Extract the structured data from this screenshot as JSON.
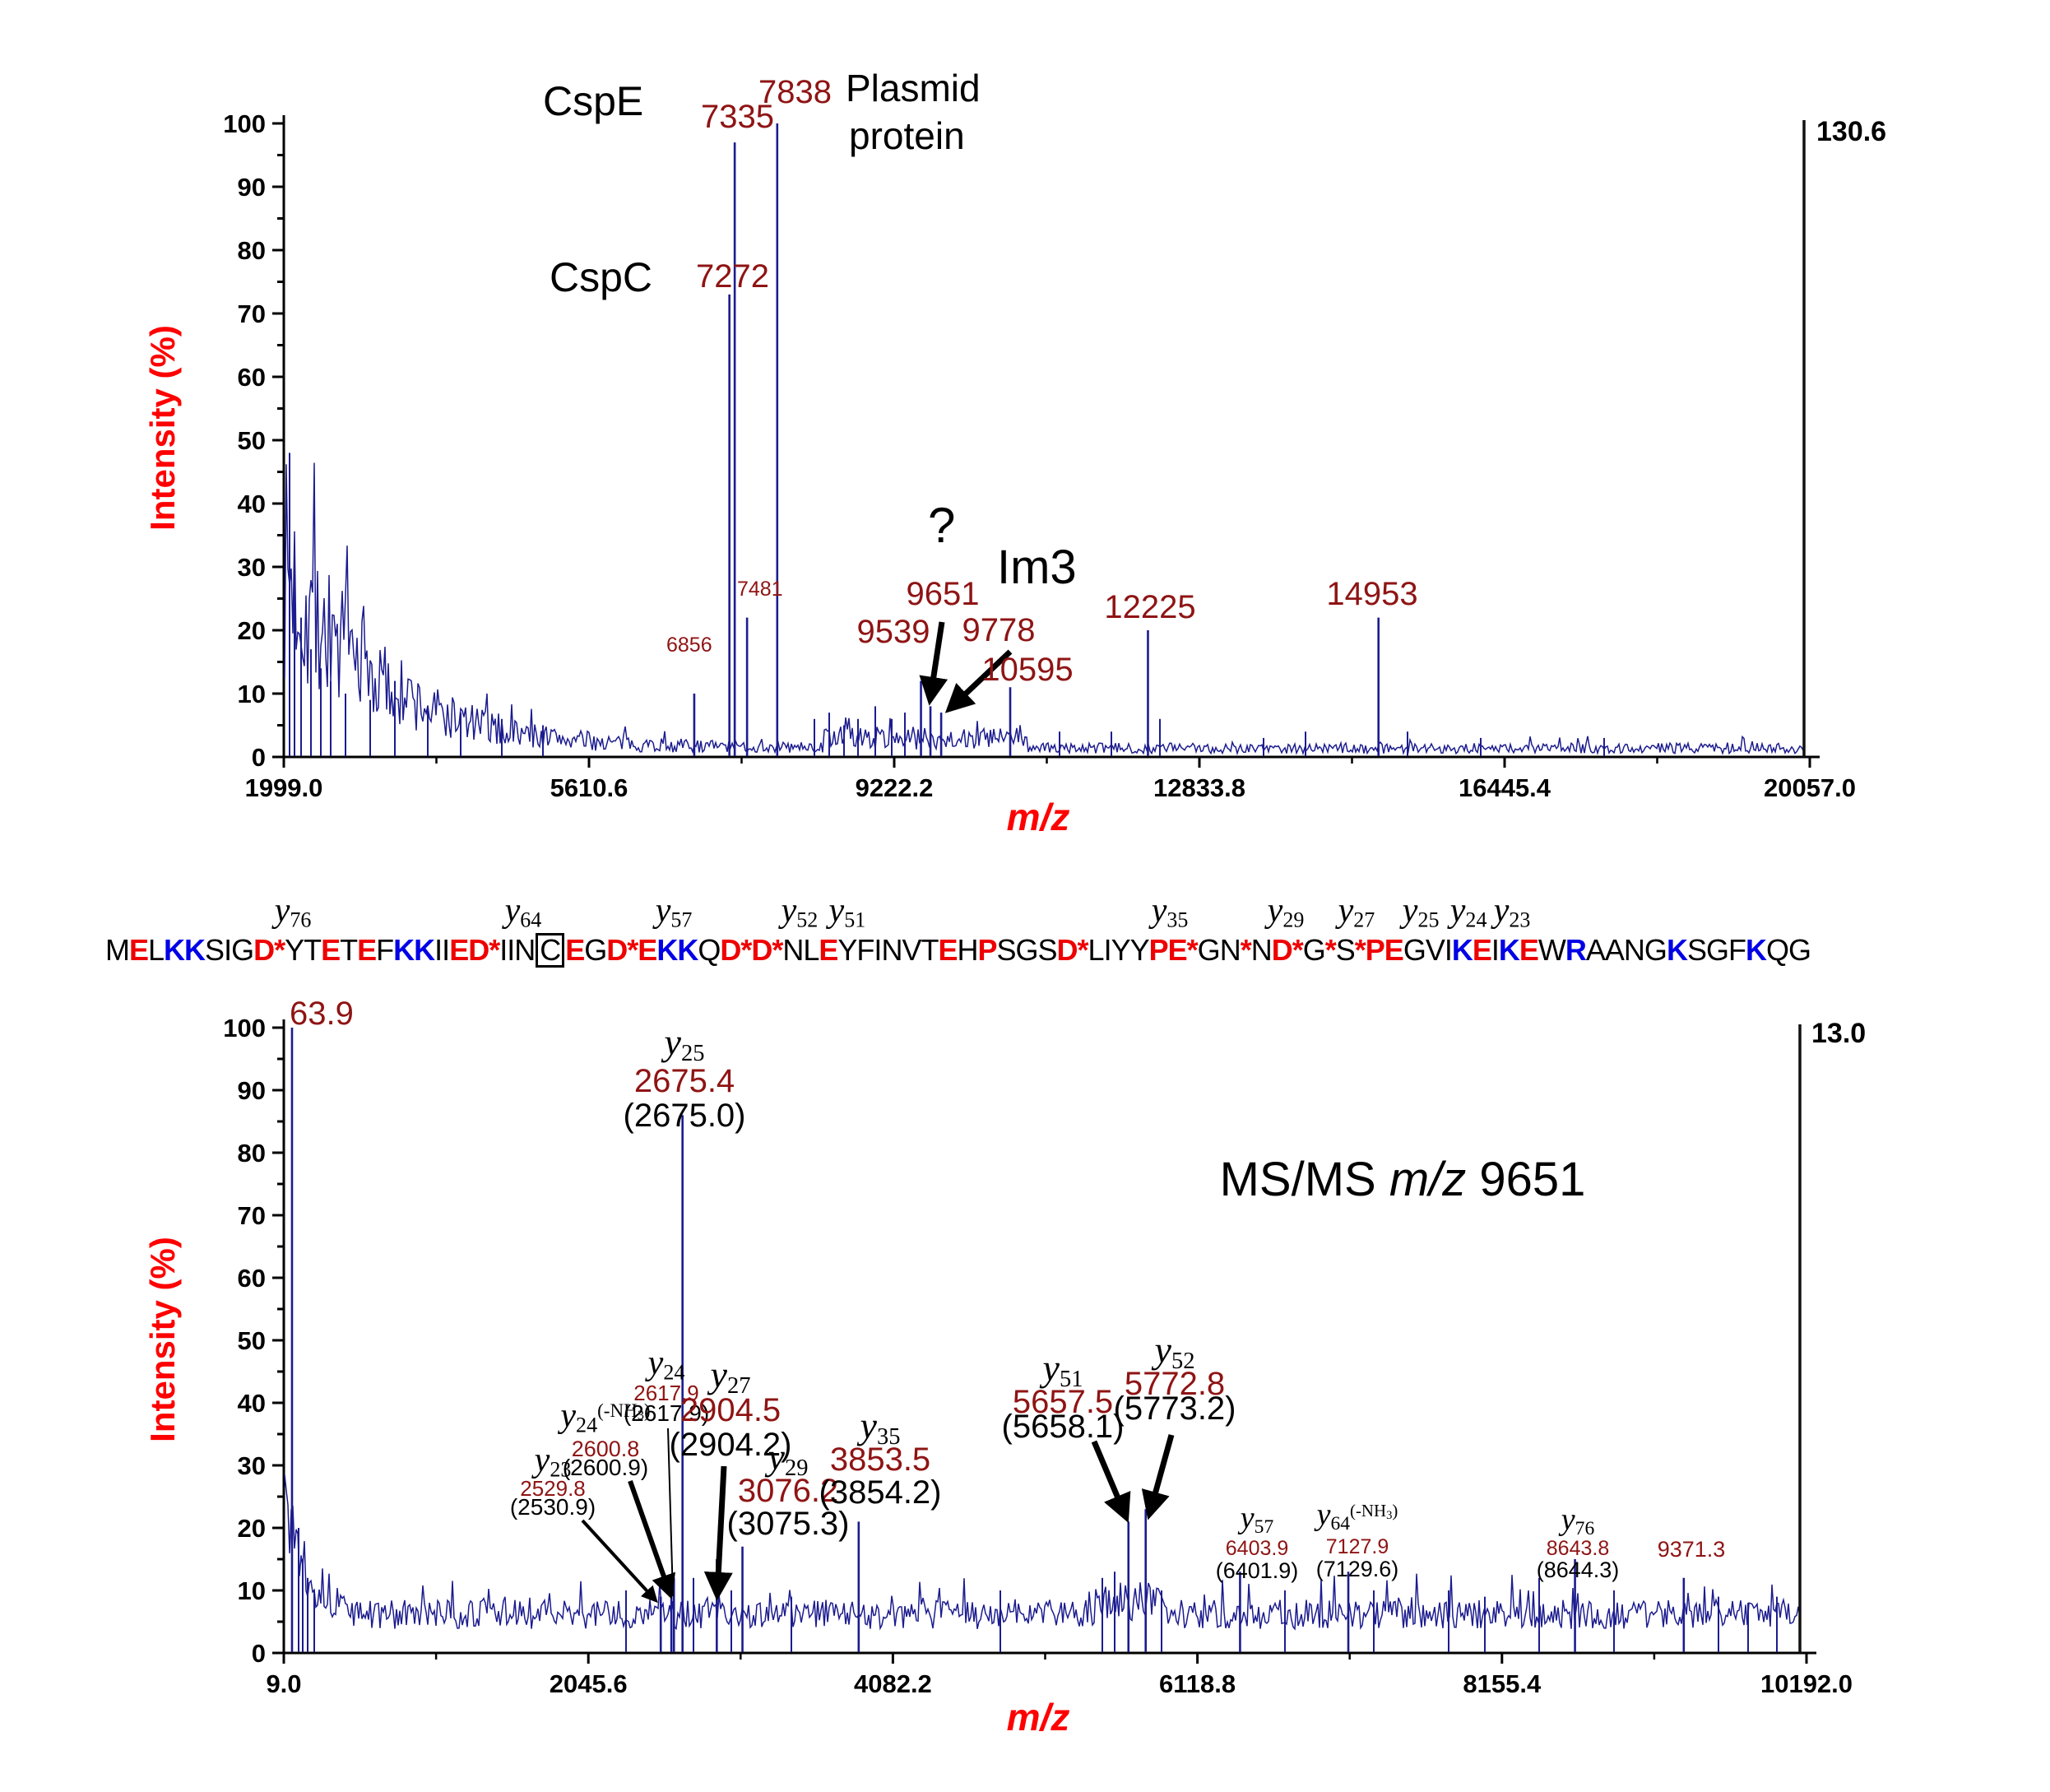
{
  "chart_data": [
    {
      "type": "line",
      "title": "",
      "xlabel": "m/z",
      "ylabel": "Intensity (%)",
      "xlim": [
        1999.0,
        20057.0
      ],
      "ylim": [
        0,
        100
      ],
      "x_tick_labels": [
        "1999.0",
        "5610.6",
        "9222.2",
        "12833.8",
        "16445.4",
        "20057.0"
      ],
      "y_tick_labels": [
        "0",
        "10",
        "20",
        "30",
        "40",
        "50",
        "60",
        "70",
        "80",
        "90",
        "100"
      ],
      "full_scale": "130.6",
      "grid": false,
      "peaks": [
        {
          "mz": 6856,
          "intensity": 10,
          "label": "6856"
        },
        {
          "mz": 7272,
          "intensity": 73,
          "label": "7272",
          "protein": "CspC"
        },
        {
          "mz": 7335,
          "intensity": 97,
          "label": "7335",
          "protein": "CspE"
        },
        {
          "mz": 7481,
          "intensity": 22,
          "label": "7481"
        },
        {
          "mz": 7838,
          "intensity": 100,
          "label": "7838",
          "protein": "Plasmid protein"
        },
        {
          "mz": 9539,
          "intensity": 12,
          "label": "9539"
        },
        {
          "mz": 9651,
          "intensity": 8,
          "label": "9651",
          "annotation": "?"
        },
        {
          "mz": 9778,
          "intensity": 7,
          "label": "9778",
          "annotation": "Im3"
        },
        {
          "mz": 10595,
          "intensity": 11,
          "label": "10595"
        },
        {
          "mz": 12225,
          "intensity": 20,
          "label": "12225"
        },
        {
          "mz": 14953,
          "intensity": 22,
          "label": "14953"
        }
      ]
    },
    {
      "type": "line",
      "title": "MS/MS m/z 9651",
      "xlabel": "m/z",
      "ylabel": "Intensity (%)",
      "xlim": [
        9.0,
        10192.0
      ],
      "ylim": [
        0,
        100
      ],
      "x_tick_labels": [
        "9.0",
        "2045.6",
        "4082.2",
        "6118.8",
        "8155.4",
        "10192.0"
      ],
      "y_tick_labels": [
        "0",
        "10",
        "20",
        "30",
        "40",
        "50",
        "60",
        "70",
        "80",
        "90",
        "100"
      ],
      "full_scale": "13.0",
      "grid": false,
      "peaks": [
        {
          "mz": 63.9,
          "intensity": 100,
          "label": "63.9"
        },
        {
          "mz": 2529.8,
          "intensity": 9,
          "ion": "y23",
          "observed": "2529.8",
          "calculated": "(2530.9)"
        },
        {
          "mz": 2600.8,
          "intensity": 10,
          "ion": "y24(-NH3)",
          "observed": "2600.8",
          "calculated": "(2600.9)"
        },
        {
          "mz": 2617.9,
          "intensity": 12,
          "ion": "y24",
          "observed": "2617.9",
          "calculated": "(2617.9)"
        },
        {
          "mz": 2675.4,
          "intensity": 86,
          "ion": "y25",
          "observed": "2675.4",
          "calculated": "(2675.0)"
        },
        {
          "mz": 2904.5,
          "intensity": 15,
          "ion": "y27",
          "observed": "2904.5",
          "calculated": "(2904.2)"
        },
        {
          "mz": 3076.2,
          "intensity": 17,
          "ion": "y29",
          "observed": "3076.2",
          "calculated": "(3075.3)"
        },
        {
          "mz": 3853.5,
          "intensity": 21,
          "ion": "y35",
          "observed": "3853.5",
          "calculated": "(3854.2)"
        },
        {
          "mz": 5657.5,
          "intensity": 21,
          "ion": "y51",
          "observed": "5657.5",
          "calculated": "(5658.1)"
        },
        {
          "mz": 5772.8,
          "intensity": 23,
          "ion": "y52",
          "observed": "5772.8",
          "calculated": "(5773.2)"
        },
        {
          "mz": 6403.9,
          "intensity": 13,
          "ion": "y57",
          "observed": "6403.9",
          "calculated": "(6401.9)"
        },
        {
          "mz": 7127.9,
          "intensity": 13,
          "ion": "y64(-NH3)",
          "observed": "7127.9",
          "calculated": "(7129.6)"
        },
        {
          "mz": 8643.8,
          "intensity": 15,
          "ion": "y76",
          "observed": "8643.8",
          "calculated": "(8644.3)"
        },
        {
          "mz": 9371.3,
          "intensity": 12,
          "label": "9371.3"
        }
      ]
    }
  ],
  "top_spectrum_labels": {
    "cspe": "CspE",
    "cspc": "CspC",
    "plasmid_line1": "Plasmid",
    "plasmid_line2": "protein",
    "question_mark": "?",
    "im3": "Im3",
    "mz_7335": "7335",
    "mz_7272": "7272",
    "mz_7838": "7838",
    "mz_7481": "7481",
    "mz_6856": "6856",
    "mz_9539": "9539",
    "mz_9651": "9651",
    "mz_9778": "9778",
    "mz_10595": "10595",
    "mz_12225": "12225",
    "mz_14953": "14953",
    "full_scale": "130.6"
  },
  "bottom_spectrum_labels": {
    "base_peak": "63.9",
    "full_scale": "13.0",
    "extra_peak": "9371.3",
    "title_pre": "MS/MS ",
    "title_italic": "m/z",
    "title_post": " 9651",
    "ions": [
      {
        "id": "y25",
        "sub": "25",
        "obs": "2675.4",
        "calc": "(2675.0)"
      },
      {
        "id": "y24",
        "sub": "24",
        "obs": "2617.9",
        "calc": "(2617.9)"
      },
      {
        "id": "y24nh3",
        "sub": "24",
        "loss": "(-NH3)",
        "obs": "2600.8",
        "calc": "(2600.9)"
      },
      {
        "id": "y23",
        "sub": "23",
        "obs": "2529.8",
        "calc": "(2530.9)"
      },
      {
        "id": "y27",
        "sub": "27",
        "obs": "2904.5",
        "calc": "(2904.2)"
      },
      {
        "id": "y29",
        "sub": "29",
        "obs": "3076.2",
        "calc": "(3075.3)"
      },
      {
        "id": "y35",
        "sub": "35",
        "obs": "3853.5",
        "calc": "(3854.2)"
      },
      {
        "id": "y51",
        "sub": "51",
        "obs": "5657.5",
        "calc": "(5658.1)"
      },
      {
        "id": "y52",
        "sub": "52",
        "obs": "5772.8",
        "calc": "(5773.2)"
      },
      {
        "id": "y57",
        "sub": "57",
        "obs": "6403.9",
        "calc": "(6401.9)"
      },
      {
        "id": "y64nh3",
        "sub": "64",
        "loss": "(-NH3)",
        "obs": "7127.9",
        "calc": "(7129.6)"
      },
      {
        "id": "y76",
        "sub": "76",
        "obs": "8643.8",
        "calc": "(8644.3)"
      }
    ]
  },
  "sequence": {
    "tokens": [
      [
        "M",
        "k"
      ],
      [
        "E",
        "r"
      ],
      [
        "L",
        "k"
      ],
      [
        "K",
        "b"
      ],
      [
        "K",
        "b"
      ],
      [
        "S",
        "k"
      ],
      [
        "I",
        "k"
      ],
      [
        "G",
        "k"
      ],
      [
        "D",
        "r"
      ],
      [
        "*",
        "r"
      ],
      [
        "Y",
        "k"
      ],
      [
        "T",
        "k"
      ],
      [
        "E",
        "r"
      ],
      [
        "T",
        "k"
      ],
      [
        "E",
        "r"
      ],
      [
        "F",
        "k"
      ],
      [
        "K",
        "b"
      ],
      [
        "K",
        "b"
      ],
      [
        "I",
        "k"
      ],
      [
        "I",
        "k"
      ],
      [
        "E",
        "r"
      ],
      [
        "D",
        "r"
      ],
      [
        "*",
        "r"
      ],
      [
        "I",
        "k"
      ],
      [
        "I",
        "k"
      ],
      [
        "N",
        "k"
      ],
      [
        "C",
        "k",
        "box"
      ],
      [
        "E",
        "r"
      ],
      [
        "G",
        "k"
      ],
      [
        "D",
        "r"
      ],
      [
        "*",
        "r"
      ],
      [
        "E",
        "r"
      ],
      [
        "K",
        "b"
      ],
      [
        "K",
        "b"
      ],
      [
        "Q",
        "k"
      ],
      [
        "D",
        "r"
      ],
      [
        "*",
        "r"
      ],
      [
        "D",
        "r"
      ],
      [
        "*",
        "r"
      ],
      [
        "N",
        "k"
      ],
      [
        "L",
        "k"
      ],
      [
        "E",
        "r"
      ],
      [
        "Y",
        "k"
      ],
      [
        "F",
        "k"
      ],
      [
        "I",
        "k"
      ],
      [
        "N",
        "k"
      ],
      [
        "V",
        "k"
      ],
      [
        "T",
        "k"
      ],
      [
        "E",
        "r"
      ],
      [
        "H",
        "k"
      ],
      [
        "P",
        "r"
      ],
      [
        "S",
        "k"
      ],
      [
        "G",
        "k"
      ],
      [
        "S",
        "k"
      ],
      [
        "D",
        "r"
      ],
      [
        "*",
        "r"
      ],
      [
        "L",
        "k"
      ],
      [
        "I",
        "k"
      ],
      [
        "Y",
        "k"
      ],
      [
        "Y",
        "k"
      ],
      [
        "P",
        "r"
      ],
      [
        "E",
        "r"
      ],
      [
        "*",
        "r"
      ],
      [
        "G",
        "k"
      ],
      [
        "N",
        "k"
      ],
      [
        "*",
        "r"
      ],
      [
        "N",
        "k"
      ],
      [
        "D",
        "r"
      ],
      [
        "*",
        "r"
      ],
      [
        "G",
        "k"
      ],
      [
        "*",
        "r"
      ],
      [
        "S",
        "k"
      ],
      [
        "*",
        "r"
      ],
      [
        "P",
        "r"
      ],
      [
        "E",
        "r"
      ],
      [
        "G",
        "k"
      ],
      [
        "V",
        "k"
      ],
      [
        "I",
        "k"
      ],
      [
        "K",
        "b"
      ],
      [
        "E",
        "r"
      ],
      [
        "I",
        "k"
      ],
      [
        "K",
        "b"
      ],
      [
        "E",
        "r"
      ],
      [
        "W",
        "k"
      ],
      [
        "R",
        "b"
      ],
      [
        "A",
        "k"
      ],
      [
        "A",
        "k"
      ],
      [
        "N",
        "k"
      ],
      [
        "G",
        "k"
      ],
      [
        "K",
        "b"
      ],
      [
        "S",
        "k"
      ],
      [
        "G",
        "k"
      ],
      [
        "F",
        "k"
      ],
      [
        "K",
        "b"
      ],
      [
        "Q",
        "k"
      ],
      [
        "G",
        "k"
      ]
    ],
    "ion_row": [
      {
        "sub": "76",
        "frac": 0.0995
      },
      {
        "sub": "64",
        "frac": 0.2216
      },
      {
        "sub": "57",
        "frac": 0.3015
      },
      {
        "sub": "52",
        "frac": 0.3682
      },
      {
        "sub": "51",
        "frac": 0.3935
      },
      {
        "sub": "35",
        "frac": 0.5646
      },
      {
        "sub": "29",
        "frac": 0.6261
      },
      {
        "sub": "27",
        "frac": 0.6636
      },
      {
        "sub": "25",
        "frac": 0.6977
      },
      {
        "sub": "24",
        "frac": 0.723
      },
      {
        "sub": "23",
        "frac": 0.7461
      }
    ]
  }
}
